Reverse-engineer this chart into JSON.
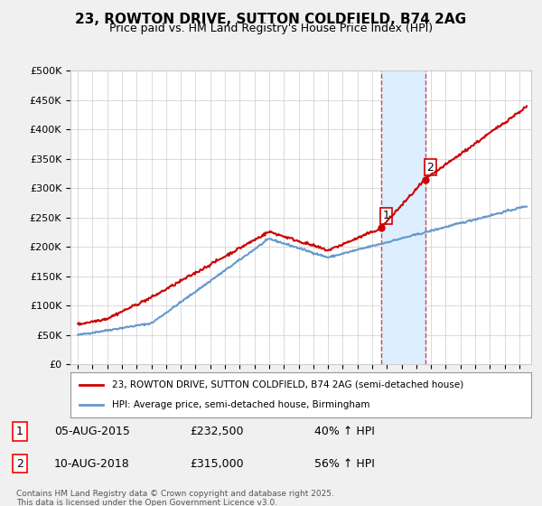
{
  "title": "23, ROWTON DRIVE, SUTTON COLDFIELD, B74 2AG",
  "subtitle": "Price paid vs. HM Land Registry's House Price Index (HPI)",
  "legend_line1": "23, ROWTON DRIVE, SUTTON COLDFIELD, B74 2AG (semi-detached house)",
  "legend_line2": "HPI: Average price, semi-detached house, Birmingham",
  "annotation1_date": "05-AUG-2015",
  "annotation1_price": "£232,500",
  "annotation1_hpi": "40% ↑ HPI",
  "annotation2_date": "10-AUG-2018",
  "annotation2_price": "£315,000",
  "annotation2_hpi": "56% ↑ HPI",
  "footnote": "Contains HM Land Registry data © Crown copyright and database right 2025.\nThis data is licensed under the Open Government Licence v3.0.",
  "price_color": "#cc0000",
  "hpi_color": "#6699cc",
  "shaded_color": "#ddeeff",
  "background_color": "#f0f0f0",
  "plot_bg_color": "#ffffff",
  "ylim": [
    0,
    500000
  ],
  "yticks": [
    0,
    50000,
    100000,
    150000,
    200000,
    250000,
    300000,
    350000,
    400000,
    450000,
    500000
  ],
  "sale1_year": 2015.6,
  "sale2_year": 2018.6,
  "sale1_price": 232500,
  "sale2_price": 315000
}
